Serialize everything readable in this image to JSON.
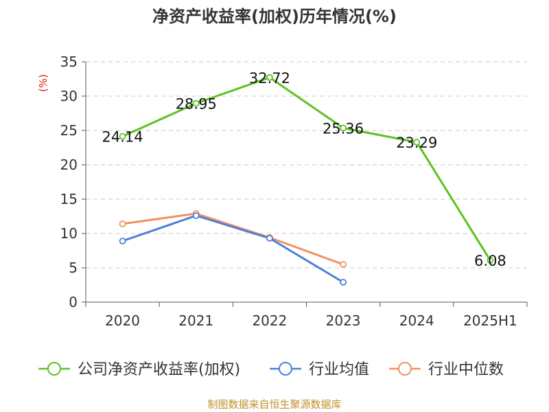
{
  "title": "净资产收益率(加权)历年情况(%)",
  "source": "制图数据来自恒生聚源数据库",
  "chart_data": {
    "type": "line",
    "title": "净资产收益率(加权)历年情况(%)",
    "ylabel": "(%)",
    "categories": [
      "2020",
      "2021",
      "2022",
      "2023",
      "2024",
      "2025H1"
    ],
    "yticks": [
      "0",
      "5",
      "10",
      "15",
      "20",
      "25",
      "30",
      "35"
    ],
    "ylim": [
      0,
      35
    ],
    "grid": true,
    "legend_position": "bottom",
    "series": [
      {
        "name": "公司净资产收益率(加权)",
        "color": "#5dc122",
        "values": [
          24.14,
          28.95,
          32.72,
          25.36,
          23.29,
          6.08
        ],
        "labels": [
          "24.14",
          "28.95",
          "32.72",
          "25.36",
          "23.29",
          "6.08"
        ],
        "show_labels": true
      },
      {
        "name": "行业均值",
        "color": "#4d7fd6",
        "values": [
          8.9,
          12.6,
          9.3,
          2.9,
          null,
          null
        ],
        "show_labels": false
      },
      {
        "name": "行业中位数",
        "color": "#f39061",
        "values": [
          11.4,
          12.9,
          9.4,
          5.5,
          null,
          null
        ],
        "show_labels": false
      }
    ]
  }
}
